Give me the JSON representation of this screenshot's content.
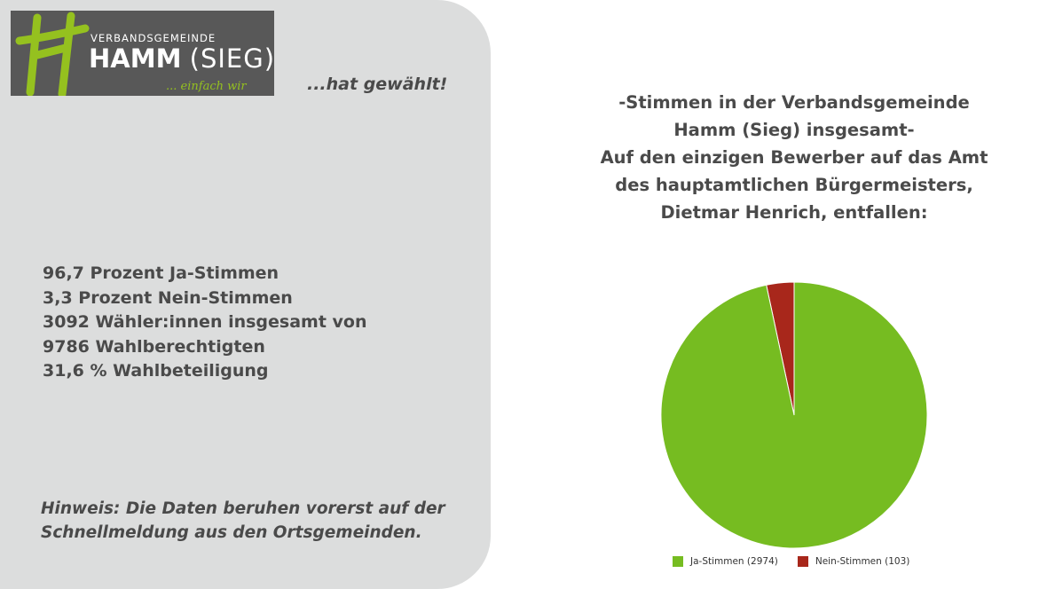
{
  "logo": {
    "top": "VERBANDSGEMEINDE",
    "main_strong": "HAMM",
    "main_light": "(SIEG)",
    "slogan": "... einfach wir"
  },
  "tagline": "...hat gewählt!",
  "stats": [
    "96,7 Prozent Ja-Stimmen",
    "3,3 Prozent Nein-Stimmen",
    "3092 Wähler:innen insgesamt von",
    "9786 Wahlberechtigten",
    "31,6 % Wahlbeteiligung"
  ],
  "note": [
    "Hinweis: Die Daten beruhen vorerst auf der",
    "Schnellmeldung aus den Ortsgemeinden."
  ],
  "colors": {
    "panel": "#dcdddd",
    "logo_bg": "#585858",
    "brand_green": "#95c11f",
    "ja": "#76bc21",
    "nein": "#a8271b"
  },
  "chart_data": {
    "type": "pie",
    "title": [
      "-Stimmen in der Verbandsgemeinde",
      "Hamm (Sieg) insgesamt-",
      "Auf den einzigen Bewerber auf das Amt",
      "des hauptamtlichen Bürgermeisters,",
      "Dietmar Henrich, entfallen:"
    ],
    "legend_position": "bottom",
    "slices": [
      {
        "label": "Ja-Stimmen (2974)",
        "value": 2974,
        "color": "#76bc21"
      },
      {
        "label": "Nein-Stimmen (103)",
        "value": 103,
        "color": "#a8271b"
      }
    ]
  }
}
